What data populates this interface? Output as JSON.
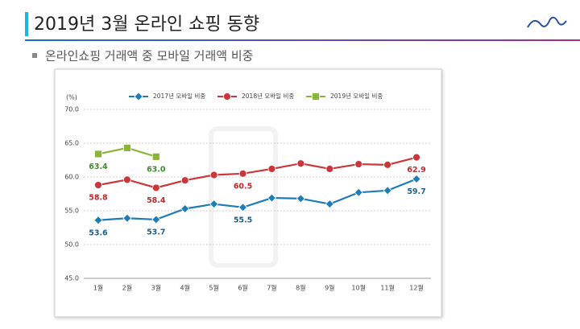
{
  "slide": {
    "title": "2019년 3월 온라인 쇼핑 동향",
    "subtitle": "온라인쇼핑 거래액 중 모바일 거래액 비중"
  },
  "chart_data": {
    "type": "line",
    "ylabel": "(%)",
    "categories": [
      "1월",
      "2월",
      "3월",
      "4월",
      "5월",
      "6월",
      "7월",
      "8월",
      "9월",
      "10월",
      "11월",
      "12월"
    ],
    "series": [
      {
        "name": "2017년 모바일 비중",
        "color": "#1e7db6",
        "label_color": "#1f5f8f",
        "marker": "diamond",
        "values": [
          53.6,
          53.9,
          53.7,
          55.3,
          56.0,
          55.5,
          56.9,
          56.8,
          56.0,
          57.7,
          58.0,
          59.7
        ],
        "value_labels": [
          "53.6",
          null,
          "53.7",
          null,
          null,
          "55.5",
          null,
          null,
          null,
          null,
          null,
          "59.7"
        ]
      },
      {
        "name": "2018년 모바일 비중",
        "color": "#c9373b",
        "label_color": "#c0282d",
        "marker": "circle",
        "values": [
          58.8,
          59.6,
          58.4,
          59.5,
          60.3,
          60.5,
          61.2,
          62.0,
          61.2,
          61.9,
          61.8,
          62.9
        ],
        "value_labels": [
          "58.8",
          null,
          "58.4",
          null,
          null,
          "60.5",
          null,
          null,
          null,
          null,
          null,
          "62.9"
        ]
      },
      {
        "name": "2019년 모바일 비중",
        "color": "#8db43a",
        "label_color": "#3f8a2a",
        "marker": "square",
        "values": [
          63.4,
          64.3,
          63.0,
          null,
          null,
          null,
          null,
          null,
          null,
          null,
          null,
          null
        ],
        "value_labels": [
          "63.4",
          null,
          "63.0",
          null,
          null,
          null,
          null,
          null,
          null,
          null,
          null,
          null
        ]
      }
    ],
    "ylim": [
      45,
      70
    ],
    "yticks": [
      {
        "value": 45,
        "label": "45.0"
      },
      {
        "value": 50,
        "label": "50.0"
      },
      {
        "value": 55,
        "label": "55.0"
      },
      {
        "value": 60,
        "label": "60.0"
      },
      {
        "value": 65,
        "label": "65.0"
      },
      {
        "value": 70,
        "label": "70.0"
      }
    ],
    "grid": true,
    "legend": "top"
  }
}
